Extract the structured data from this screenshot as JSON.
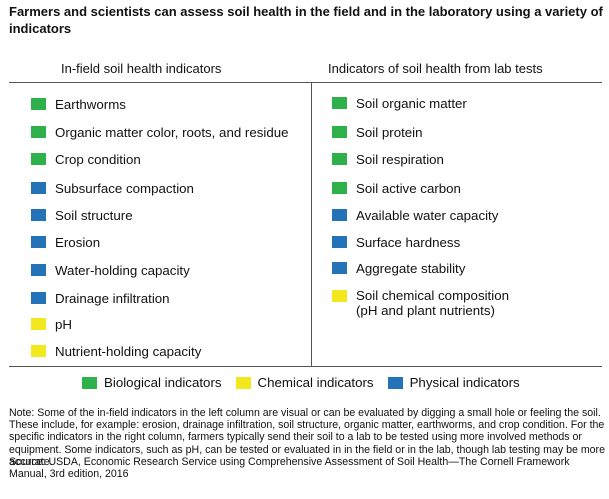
{
  "title": "Farmers and scientists can assess soil health in the field and in the laboratory using a variety of indicators",
  "colors": {
    "Biological": "#2eb04b",
    "Chemical": "#f2e81d",
    "Physical": "#2473b9"
  },
  "chart_data": {
    "type": "table",
    "columns": [
      "In-field soil health indicators",
      "Indicators of soil health from lab tests"
    ],
    "left": [
      {
        "label": "Earthworms",
        "category": "Biological"
      },
      {
        "label": "Organic matter color, roots, and residue",
        "category": "Biological"
      },
      {
        "label": "Crop condition",
        "category": "Biological"
      },
      {
        "label": "Subsurface compaction",
        "category": "Physical"
      },
      {
        "label": "Soil structure",
        "category": "Physical"
      },
      {
        "label": "Erosion",
        "category": "Physical"
      },
      {
        "label": "Water-holding capacity",
        "category": "Physical"
      },
      {
        "label": "Drainage infiltration",
        "category": "Physical"
      },
      {
        "label": "pH",
        "category": "Chemical"
      },
      {
        "label": "Nutrient-holding capacity",
        "category": "Chemical"
      }
    ],
    "right": [
      {
        "label": "Soil organic matter",
        "category": "Biological"
      },
      {
        "label": "Soil protein",
        "category": "Biological"
      },
      {
        "label": "Soil respiration",
        "category": "Biological"
      },
      {
        "label": "Soil active carbon",
        "category": "Biological"
      },
      {
        "label": "Available water capacity",
        "category": "Physical"
      },
      {
        "label": "Surface hardness",
        "category": "Physical"
      },
      {
        "label": "Aggregate stability",
        "category": "Physical"
      },
      {
        "label": "Soil chemical composition\n(pH and plant nutrients)",
        "category": "Chemical"
      }
    ],
    "legend": [
      {
        "label": "Biological indicators",
        "category": "Biological"
      },
      {
        "label": "Chemical indicators",
        "category": "Chemical"
      },
      {
        "label": "Physical indicators",
        "category": "Physical"
      }
    ]
  },
  "note": "Note: Some of the in-field indicators in the left column are visual or can be evaluated by digging a small hole or feeling the soil. These include, for example: erosion, drainage infiltration, soil structure, organic matter, earthworms, and crop condition. For the specific indicators in the right column, farmers typically send their soil to a lab to be tested using more involved methods or equipment. Some indicators, such as pH, can be tested or evaluated in in the field or in the lab, though lab testing may be more accurate.",
  "source": "Source: USDA, Economic Research Service using Comprehensive Assessment of Soil Health—The Cornell Framework Manual, 3rd edition, 2016"
}
